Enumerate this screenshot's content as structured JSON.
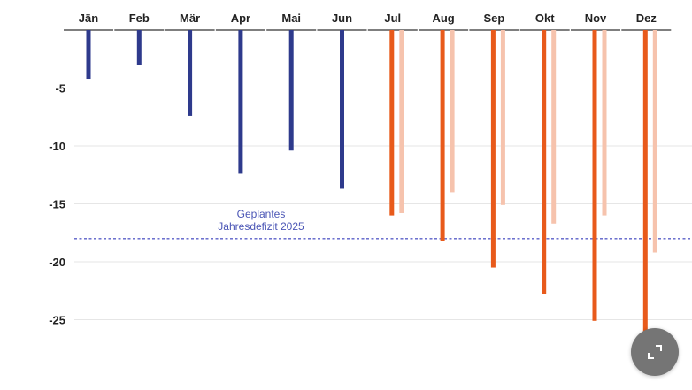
{
  "chart_data": {
    "type": "bar",
    "orientation": "vertical-down",
    "categories": [
      "Jän",
      "Feb",
      "Mär",
      "Apr",
      "Mai",
      "Jun",
      "Jul",
      "Aug",
      "Sep",
      "Okt",
      "Nov",
      "Dez"
    ],
    "series": [
      {
        "values": [
          -4.2,
          -3.0,
          -7.4,
          -12.4,
          -10.4,
          -13.7,
          -16.0,
          -18.2,
          -20.5,
          -22.8,
          -25.1,
          -27.3
        ],
        "colors": [
          "#2e3a8c",
          "#2e3a8c",
          "#2e3a8c",
          "#2e3a8c",
          "#2e3a8c",
          "#2e3a8c",
          "#e85a1b",
          "#e85a1b",
          "#e85a1b",
          "#e85a1b",
          "#e85a1b",
          "#e85a1b"
        ]
      },
      {
        "values": [
          null,
          null,
          null,
          null,
          null,
          null,
          -15.8,
          -14.0,
          -15.1,
          -16.7,
          -16.0,
          -19.2
        ],
        "color": "#f6c3ad"
      }
    ],
    "y_ticks": [
      -5,
      -10,
      -15,
      -20,
      -25
    ],
    "y_tick_labels": [
      "-5",
      "-10",
      "-15",
      "-20",
      "-25"
    ],
    "ylim": [
      -28.5,
      0
    ],
    "reference_line": {
      "value": -18,
      "label_lines": [
        "Geplantes",
        "Jahresdefizit 2025"
      ],
      "color": "#5a5fc8"
    },
    "grid": true,
    "title": "",
    "xlabel": "",
    "ylabel": ""
  },
  "ui": {
    "expand_icon": "expand-icon",
    "expand_button_color": "#757575"
  }
}
